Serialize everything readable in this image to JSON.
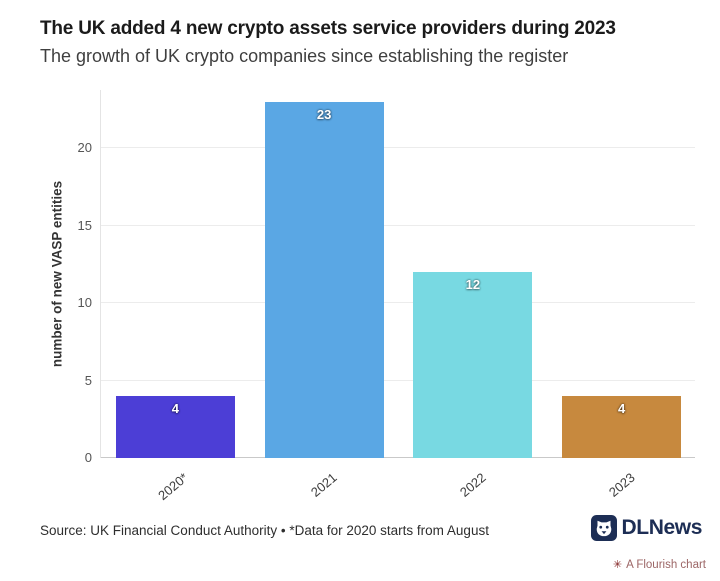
{
  "header": {
    "title": "The UK added 4 new crypto assets service providers during 2023",
    "subtitle": "The growth of UK crypto companies since establishing the register"
  },
  "chart_data": {
    "type": "bar",
    "title": "The UK added 4 new crypto assets service providers during 2023",
    "subtitle": "The growth of UK crypto companies since establishing the register",
    "categories": [
      "2020*",
      "2021",
      "2022",
      "2023"
    ],
    "values": [
      4,
      23,
      12,
      4
    ],
    "value_labels": [
      "4",
      "23",
      "12",
      "4"
    ],
    "bar_colors": [
      "#4c3ed6",
      "#5aa7e4",
      "#78d9e2",
      "#c7893e"
    ],
    "xlabel": "",
    "ylabel": "number of new VASP entities",
    "yticks": [
      0,
      5,
      10,
      15,
      20
    ],
    "ytick_labels": [
      "0",
      "5",
      "10",
      "15",
      "20"
    ],
    "ylim": [
      0,
      23.75
    ],
    "grid": "horizontal",
    "legend": "none"
  },
  "footer": {
    "source": "Source: UK Financial Conduct Authority • *Data for 2020 starts from August",
    "logo_text": "DLNews",
    "attribution": "A Flourish chart",
    "attribution_icon": "✳"
  },
  "colors": {
    "title_text": "#1b1b1b",
    "subtitle_text": "#3f3f3f",
    "logo_navy": "#1d2e55",
    "flourish_red": "#7e1d1d",
    "gridline": "#ececec",
    "baseline": "#c9c9c9"
  }
}
